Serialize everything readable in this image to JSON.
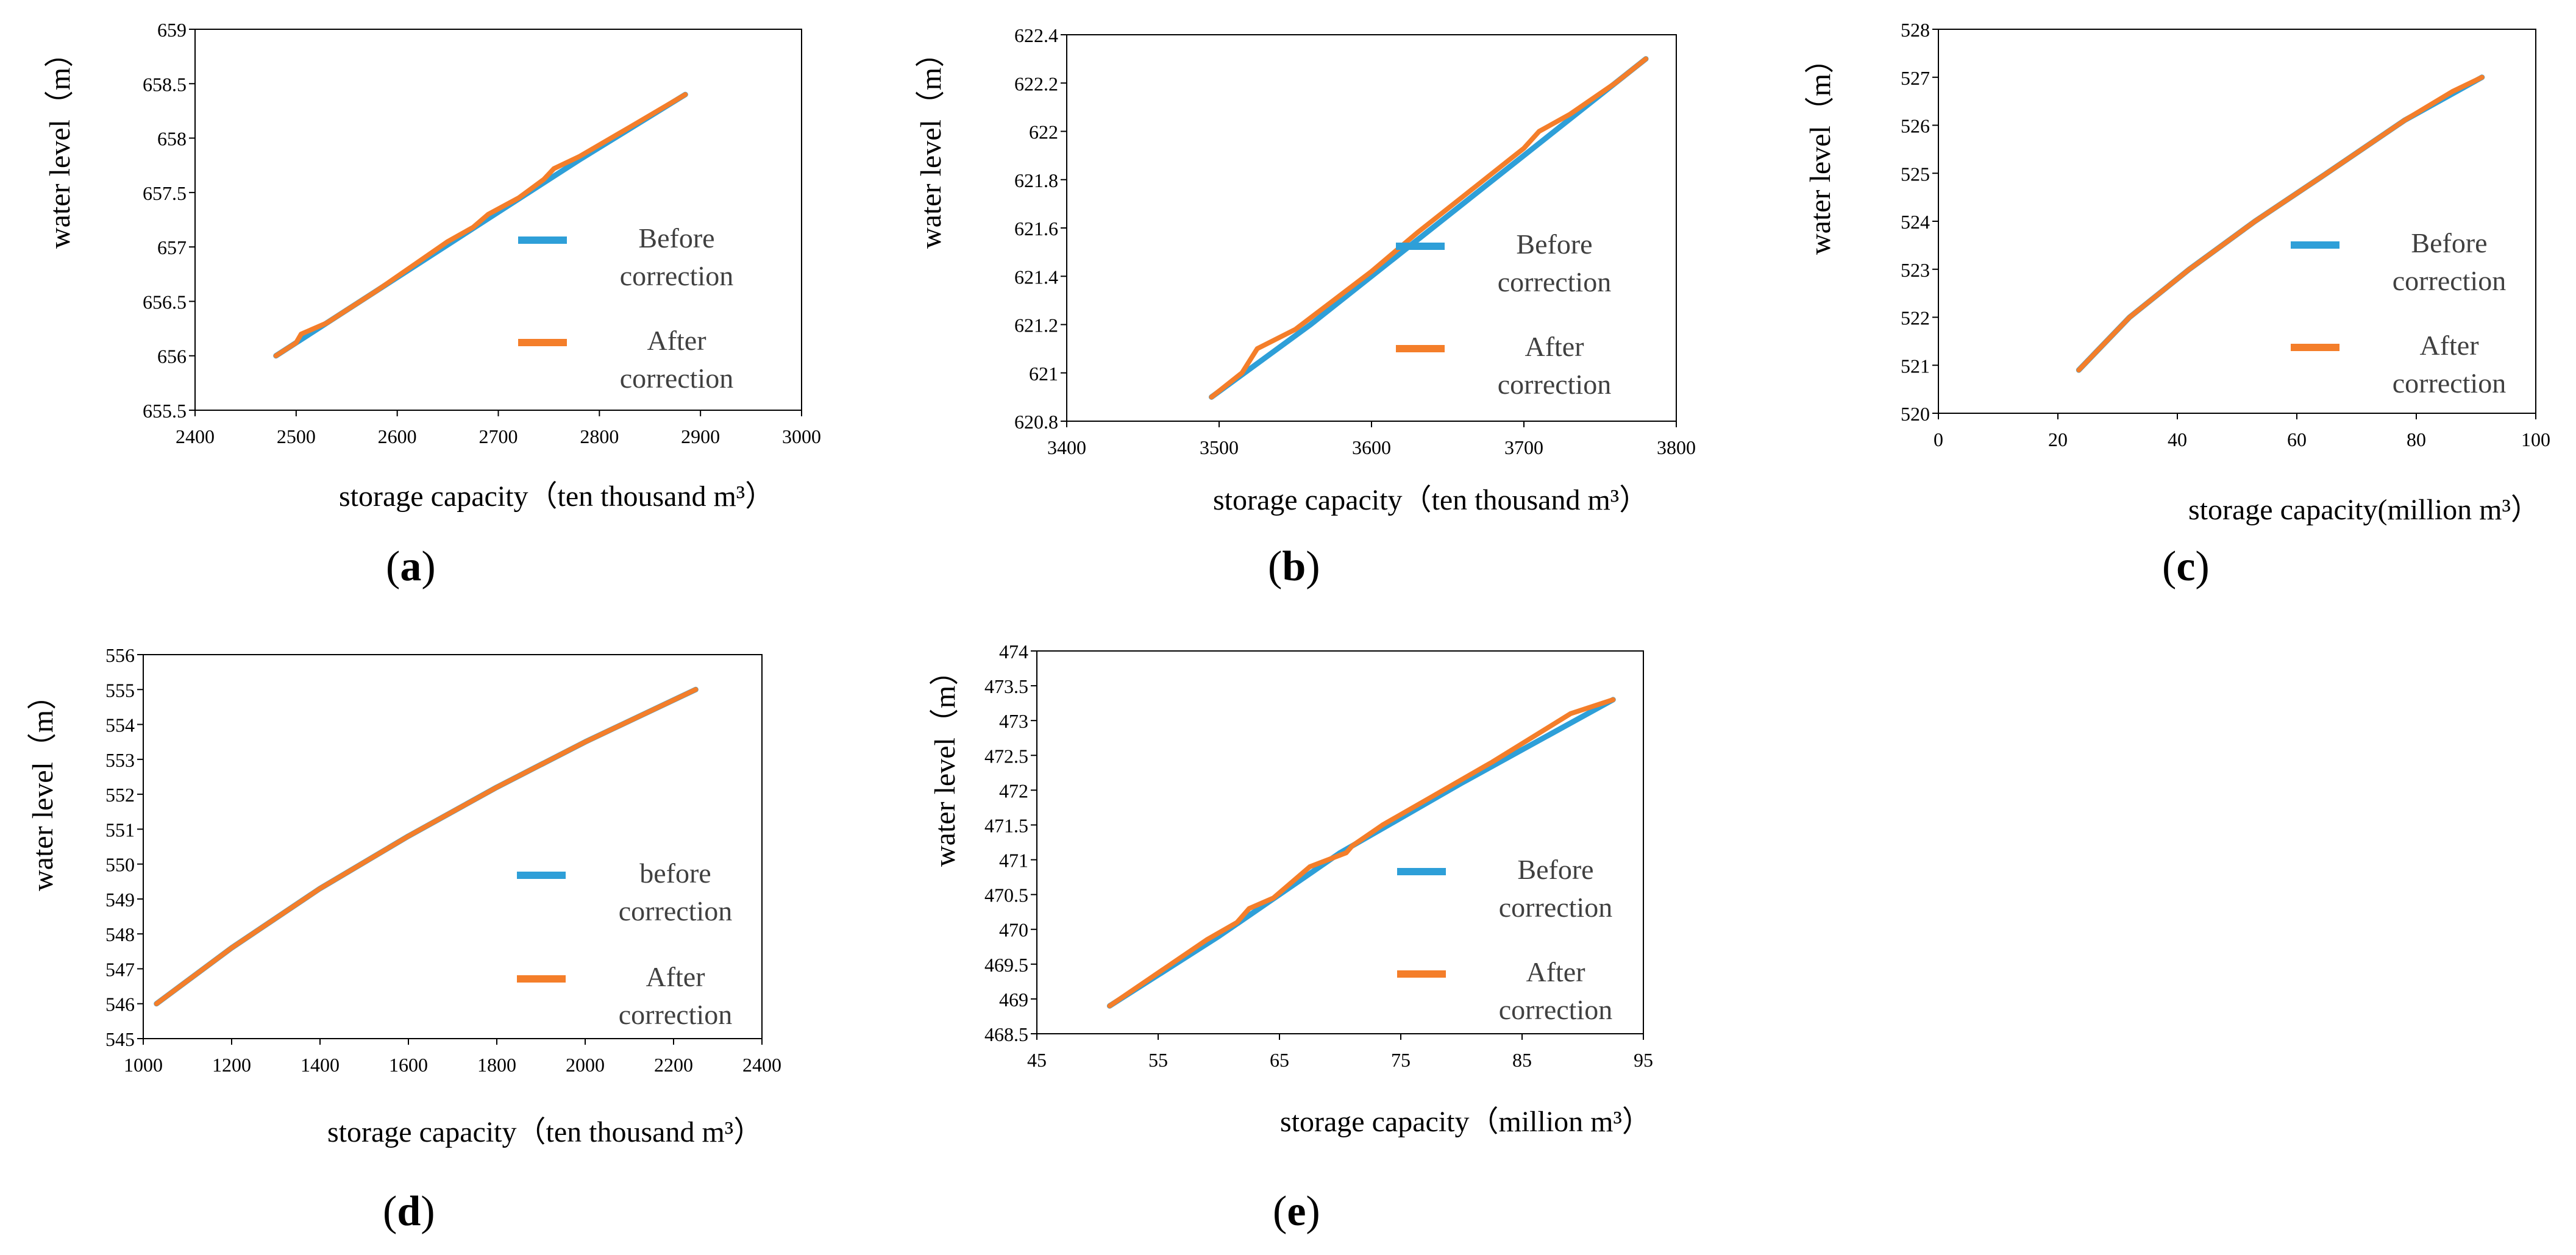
{
  "colors": {
    "before": "#2E9FD8",
    "after": "#F47E2A",
    "axis": "#000000",
    "tick_text": "#000000",
    "legend_text": "#404040"
  },
  "chart_data": [
    {
      "id": "a",
      "type": "line",
      "panel_label": "a",
      "xlabel": "storage capacity（ten thousand m³）",
      "ylabel": "water level（m）",
      "xlim": [
        2400,
        3000
      ],
      "ylim": [
        655.5,
        659
      ],
      "xticks": [
        "2400",
        "2500",
        "2600",
        "2700",
        "2800",
        "2900",
        "3000"
      ],
      "yticks": [
        "655.5",
        "656",
        "656.5",
        "657",
        "657.5",
        "658",
        "658.5",
        "659"
      ],
      "legend": [
        "Before\ncorrection",
        "After\ncorrection"
      ],
      "series": [
        {
          "name": "Before correction",
          "x": [
            2480,
            2580,
            2680,
            2780,
            2885
          ],
          "y": [
            656.0,
            656.6,
            657.2,
            657.8,
            658.4
          ]
        },
        {
          "name": "After correction",
          "x": [
            2480,
            2500,
            2505,
            2530,
            2580,
            2650,
            2675,
            2690,
            2720,
            2745,
            2755,
            2780,
            2830,
            2885
          ],
          "y": [
            656.0,
            656.12,
            656.2,
            656.3,
            656.6,
            657.05,
            657.18,
            657.3,
            657.45,
            657.62,
            657.72,
            657.83,
            658.1,
            658.4
          ]
        }
      ]
    },
    {
      "id": "b",
      "type": "line",
      "panel_label": "b",
      "xlabel": "storage capacity（ten thousand m³）",
      "ylabel": "water level（m）",
      "xlim": [
        3400,
        3800
      ],
      "ylim": [
        620.8,
        622.4
      ],
      "xticks": [
        "3400",
        "3500",
        "3600",
        "3700",
        "3800"
      ],
      "yticks": [
        "620.8",
        "621",
        "621.2",
        "621.4",
        "621.6",
        "621.8",
        "622",
        "622.2",
        "622.4"
      ],
      "legend": [
        "Before\ncorrection",
        "After\ncorrection"
      ],
      "series": [
        {
          "name": "Before correction",
          "x": [
            3495,
            3560,
            3620,
            3700,
            3780
          ],
          "y": [
            620.9,
            621.2,
            621.5,
            621.9,
            622.3
          ]
        },
        {
          "name": "After correction",
          "x": [
            3495,
            3515,
            3525,
            3550,
            3575,
            3600,
            3630,
            3660,
            3700,
            3710,
            3730,
            3760,
            3780
          ],
          "y": [
            620.9,
            621.0,
            621.1,
            621.18,
            621.3,
            621.42,
            621.58,
            621.73,
            621.93,
            622.0,
            622.07,
            622.2,
            622.3
          ]
        }
      ]
    },
    {
      "id": "c",
      "type": "line",
      "panel_label": "c",
      "xlabel": "storage capacity(million m³）",
      "ylabel": "water level（m）",
      "xlim": [
        0,
        100
      ],
      "ylim": [
        520,
        528
      ],
      "xticks": [
        "0",
        "20",
        "40",
        "60",
        "80",
        "100"
      ],
      "yticks": [
        "520",
        "521",
        "522",
        "523",
        "524",
        "525",
        "526",
        "527",
        "528"
      ],
      "legend": [
        "Before\ncorrection",
        "After\ncorrection"
      ],
      "series": [
        {
          "name": "Before correction",
          "x": [
            23.5,
            32,
            42,
            53,
            65,
            78,
            91
          ],
          "y": [
            520.9,
            522.0,
            523.0,
            524.0,
            525.0,
            526.1,
            527.0
          ]
        },
        {
          "name": "After correction",
          "x": [
            23.5,
            32,
            42,
            53,
            65,
            78,
            86,
            91
          ],
          "y": [
            520.9,
            522.0,
            523.0,
            524.0,
            525.0,
            526.1,
            526.7,
            527.0
          ]
        }
      ]
    },
    {
      "id": "d",
      "type": "line",
      "panel_label": "d",
      "xlabel": "storage capacity（ten thousand m³）",
      "ylabel": "water level（m）",
      "xlim": [
        1000,
        2400
      ],
      "ylim": [
        545,
        556
      ],
      "xticks": [
        "1000",
        "1200",
        "1400",
        "1600",
        "1800",
        "2000",
        "2200",
        "2400"
      ],
      "yticks": [
        "545",
        "546",
        "547",
        "548",
        "549",
        "550",
        "551",
        "552",
        "553",
        "554",
        "555",
        "556"
      ],
      "legend": [
        "before\ncorrection",
        "After\ncorrection"
      ],
      "series": [
        {
          "name": "before correction",
          "x": [
            1030,
            1200,
            1400,
            1600,
            1800,
            2000,
            2250
          ],
          "y": [
            546.0,
            547.6,
            549.3,
            550.8,
            552.2,
            553.5,
            555.0
          ]
        },
        {
          "name": "After correction",
          "x": [
            1030,
            1200,
            1400,
            1600,
            1800,
            2000,
            2250
          ],
          "y": [
            546.0,
            547.6,
            549.3,
            550.8,
            552.2,
            553.5,
            555.0
          ]
        }
      ]
    },
    {
      "id": "e",
      "type": "line",
      "panel_label": "e",
      "xlabel": "storage capacity（million m³）",
      "ylabel": "water level（m）",
      "xlim": [
        45,
        95
      ],
      "ylim": [
        468.5,
        474
      ],
      "xticks": [
        "45",
        "55",
        "65",
        "75",
        "85",
        "95"
      ],
      "yticks": [
        "468.5",
        "469",
        "469.5",
        "470",
        "470.5",
        "471",
        "471.5",
        "472",
        "472.5",
        "473",
        "473.5",
        "474"
      ],
      "legend": [
        "Before\ncorrection",
        "After\ncorrection"
      ],
      "series": [
        {
          "name": "Before correction",
          "x": [
            51,
            60,
            70,
            80,
            92.5
          ],
          "y": [
            468.9,
            469.9,
            471.1,
            472.1,
            473.3
          ]
        },
        {
          "name": "After correction",
          "x": [
            51,
            59,
            61.5,
            62.5,
            64.5,
            67.5,
            70.5,
            71,
            73.5,
            77.5,
            82,
            82.5,
            89,
            92.5
          ],
          "y": [
            468.9,
            469.85,
            470.1,
            470.3,
            470.45,
            470.9,
            471.1,
            471.2,
            471.5,
            471.9,
            472.35,
            472.4,
            473.1,
            473.3
          ]
        }
      ]
    }
  ]
}
